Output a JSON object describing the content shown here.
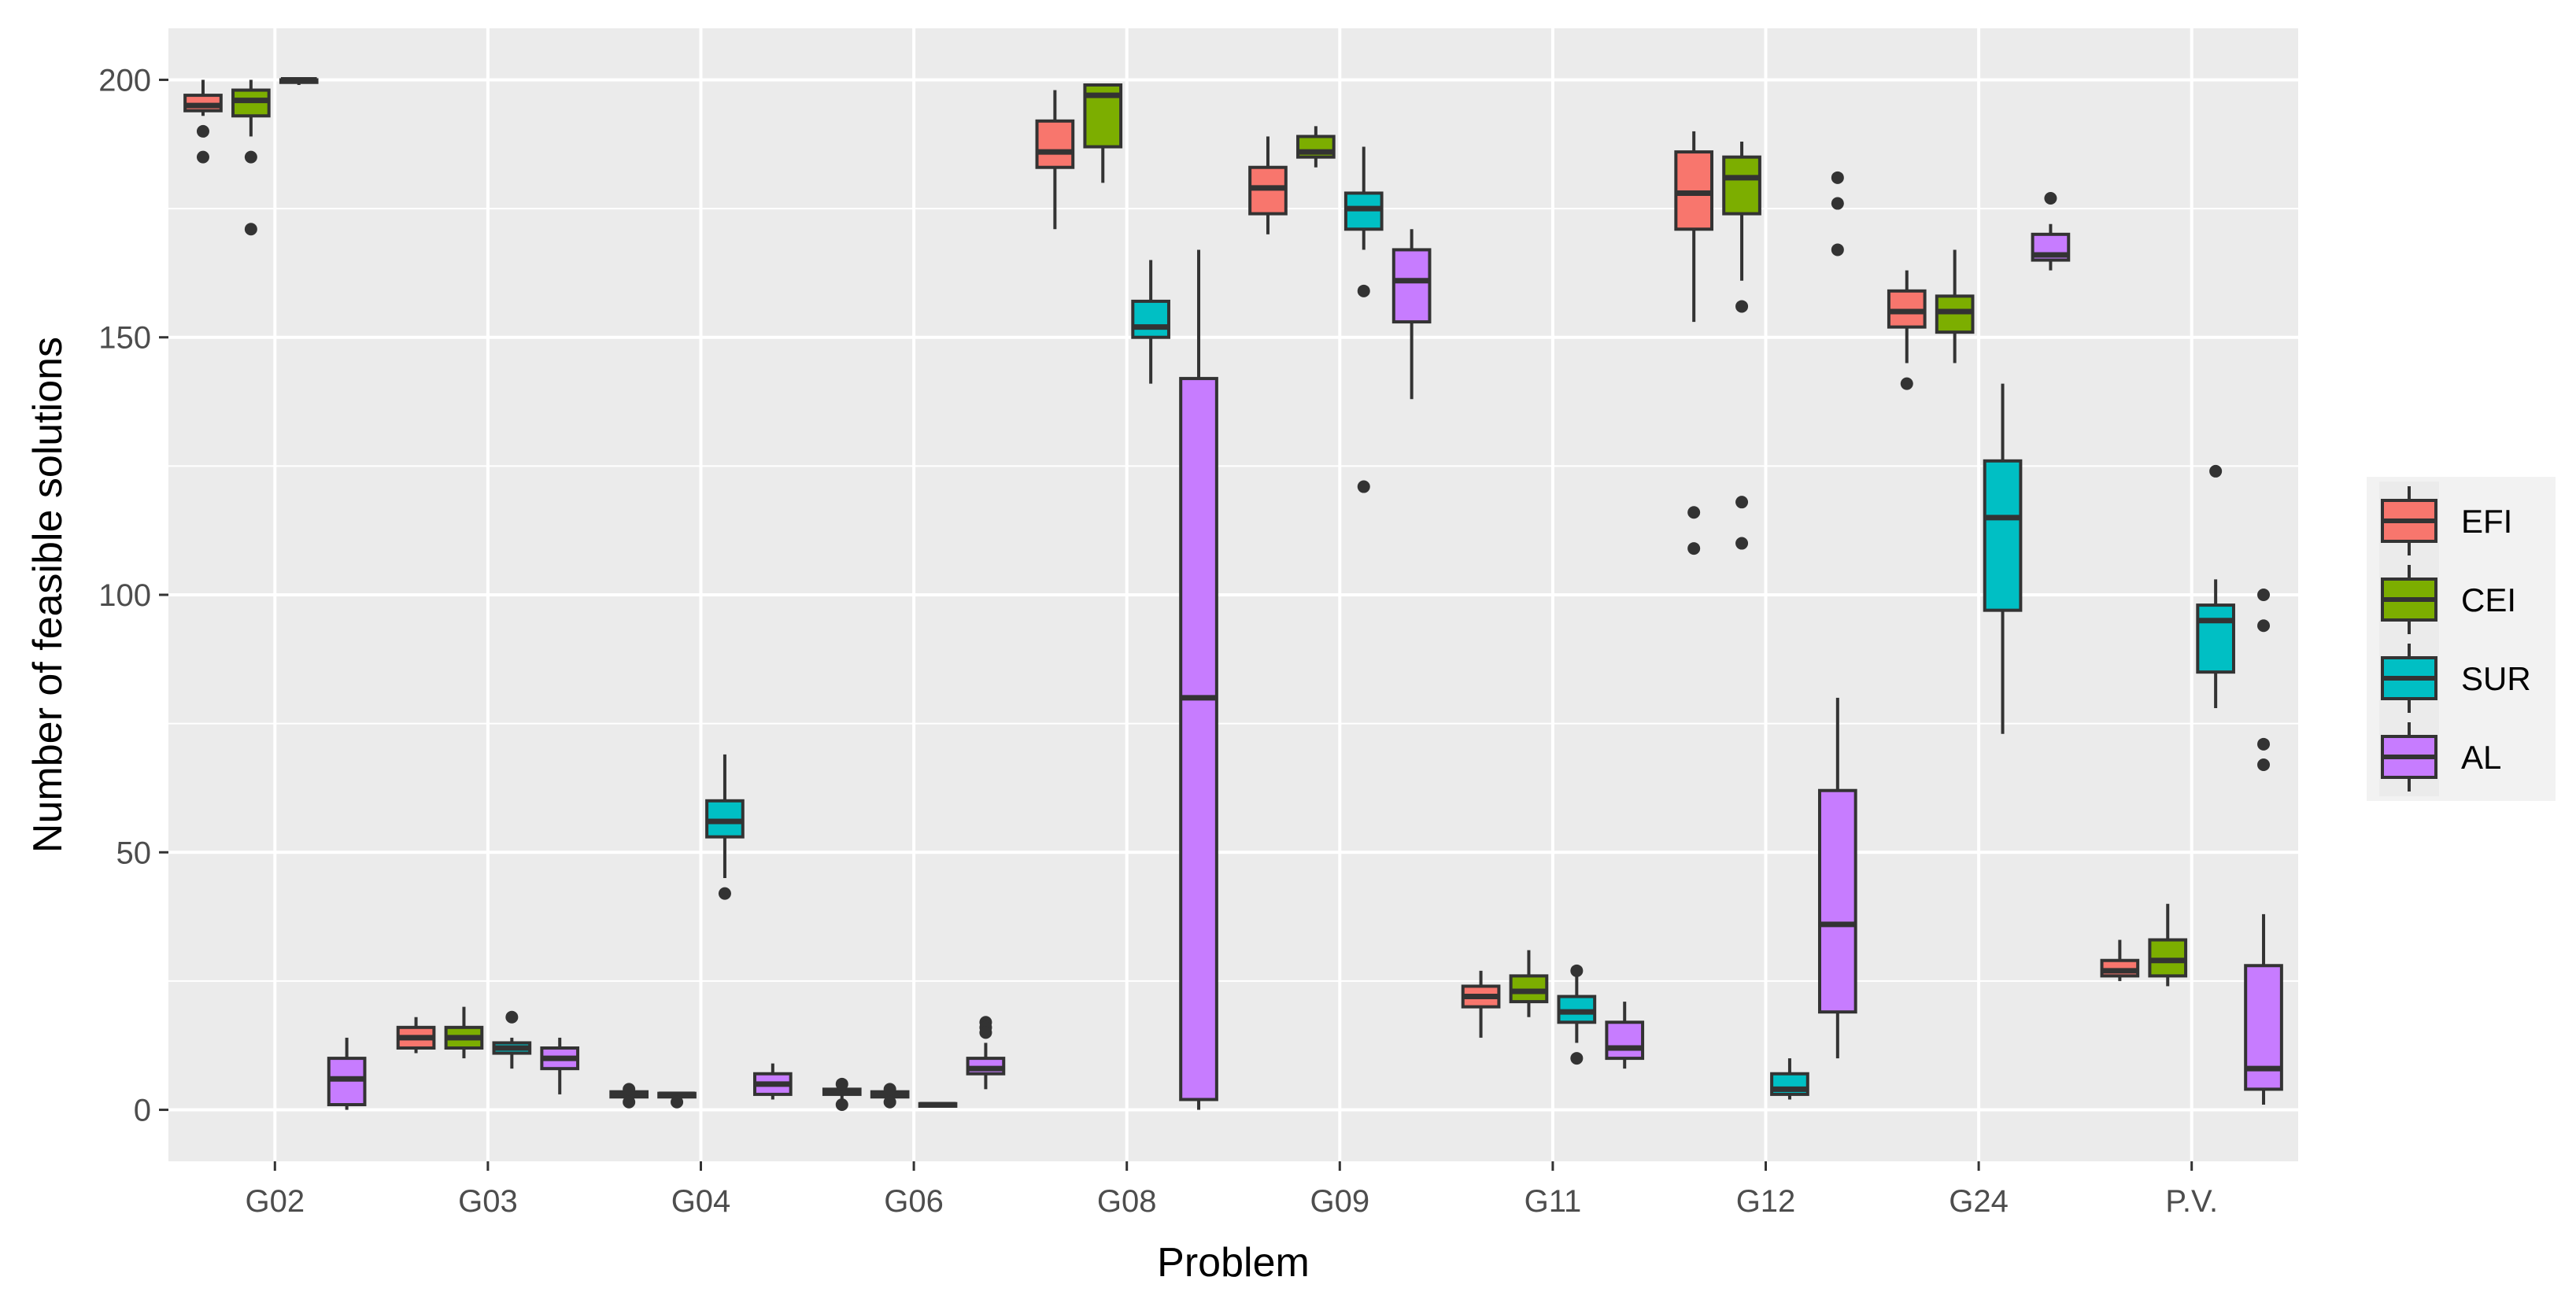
{
  "chart_data": {
    "type": "boxplot",
    "xlabel": "Problem",
    "ylabel": "Number of feasible solutions",
    "ylim": [
      -10,
      210
    ],
    "yticks": [
      0,
      50,
      100,
      150,
      200
    ],
    "categories": [
      "G02",
      "G03",
      "G04",
      "G06",
      "G08",
      "G09",
      "G11",
      "G12",
      "G24",
      "P.V."
    ],
    "legend": {
      "position": "right",
      "entries": [
        {
          "name": "EFI",
          "color": "#F8766D"
        },
        {
          "name": "CEI",
          "color": "#7CAE00"
        },
        {
          "name": "SUR",
          "color": "#00BFC4"
        },
        {
          "name": "AL",
          "color": "#C77CFF"
        }
      ]
    },
    "series": [
      {
        "name": "EFI",
        "boxes": [
          {
            "category": "G02",
            "low": 193,
            "q1": 194,
            "median": 195,
            "q3": 197,
            "high": 200,
            "outliers": [
              190,
              185
            ]
          },
          {
            "category": "G03",
            "low": 11,
            "q1": 12,
            "median": 14,
            "q3": 16,
            "high": 18,
            "outliers": []
          },
          {
            "category": "G04",
            "low": 2,
            "q1": 2.5,
            "median": 3,
            "q3": 3.5,
            "high": 4,
            "outliers": [
              1.5,
              4
            ]
          },
          {
            "category": "G06",
            "low": 2,
            "q1": 3,
            "median": 3.5,
            "q3": 4,
            "high": 5,
            "outliers": [
              1,
              5
            ]
          },
          {
            "category": "G08",
            "low": 171,
            "q1": 183,
            "median": 186,
            "q3": 192,
            "high": 198,
            "outliers": []
          },
          {
            "category": "G09",
            "low": 170,
            "q1": 174,
            "median": 179,
            "q3": 183,
            "high": 189,
            "outliers": []
          },
          {
            "category": "G11",
            "low": 14,
            "q1": 20,
            "median": 22,
            "q3": 24,
            "high": 27,
            "outliers": []
          },
          {
            "category": "G12",
            "low": 153,
            "q1": 171,
            "median": 178,
            "q3": 186,
            "high": 190,
            "outliers": [
              116,
              109
            ]
          },
          {
            "category": "G24",
            "low": 145,
            "q1": 152,
            "median": 155,
            "q3": 159,
            "high": 163,
            "outliers": [
              141
            ]
          },
          {
            "category": "P.V.",
            "low": 25,
            "q1": 26,
            "median": 27,
            "q3": 29,
            "high": 33,
            "outliers": []
          }
        ]
      },
      {
        "name": "CEI",
        "boxes": [
          {
            "category": "G02",
            "low": 189,
            "q1": 193,
            "median": 196,
            "q3": 198,
            "high": 200,
            "outliers": [
              185,
              171
            ]
          },
          {
            "category": "G03",
            "low": 10,
            "q1": 12,
            "median": 14,
            "q3": 16,
            "high": 20,
            "outliers": []
          },
          {
            "category": "G04",
            "low": 2,
            "q1": 2.5,
            "median": 3,
            "q3": 3.2,
            "high": 3.5,
            "outliers": [
              1.5
            ]
          },
          {
            "category": "G06",
            "low": 2,
            "q1": 2.5,
            "median": 3,
            "q3": 3.5,
            "high": 4,
            "outliers": [
              1.5,
              4
            ]
          },
          {
            "category": "G08",
            "low": 180,
            "q1": 187,
            "median": 197,
            "q3": 199,
            "high": 199,
            "outliers": []
          },
          {
            "category": "G09",
            "low": 183,
            "q1": 185,
            "median": 186,
            "q3": 189,
            "high": 191,
            "outliers": []
          },
          {
            "category": "G11",
            "low": 18,
            "q1": 21,
            "median": 23,
            "q3": 26,
            "high": 31,
            "outliers": []
          },
          {
            "category": "G12",
            "low": 161,
            "q1": 174,
            "median": 181,
            "q3": 185,
            "high": 188,
            "outliers": [
              156,
              118,
              110
            ]
          },
          {
            "category": "G24",
            "low": 145,
            "q1": 151,
            "median": 155,
            "q3": 158,
            "high": 167,
            "outliers": []
          },
          {
            "category": "P.V.",
            "low": 24,
            "q1": 26,
            "median": 29,
            "q3": 33,
            "high": 40,
            "outliers": []
          }
        ]
      },
      {
        "name": "SUR",
        "boxes": [
          {
            "category": "G02",
            "low": 199,
            "q1": 199.5,
            "median": 200,
            "q3": 200,
            "high": 200,
            "outliers": []
          },
          {
            "category": "G03",
            "low": 8,
            "q1": 11,
            "median": 12,
            "q3": 13,
            "high": 14,
            "outliers": [
              18
            ]
          },
          {
            "category": "G04",
            "low": 45,
            "q1": 53,
            "median": 56,
            "q3": 60,
            "high": 69,
            "outliers": [
              42
            ]
          },
          {
            "category": "G06",
            "low": 0.5,
            "q1": 0.7,
            "median": 1,
            "q3": 1.2,
            "high": 1.5,
            "outliers": []
          },
          {
            "category": "G08",
            "low": 141,
            "q1": 150,
            "median": 152,
            "q3": 157,
            "high": 165,
            "outliers": []
          },
          {
            "category": "G09",
            "low": 167,
            "q1": 171,
            "median": 175,
            "q3": 178,
            "high": 187,
            "outliers": [
              159,
              121
            ]
          },
          {
            "category": "G11",
            "low": 13,
            "q1": 17,
            "median": 19,
            "q3": 22,
            "high": 27,
            "outliers": [
              27,
              10
            ]
          },
          {
            "category": "G12",
            "low": 2,
            "q1": 3,
            "median": 4,
            "q3": 7,
            "high": 10,
            "outliers": []
          },
          {
            "category": "G24",
            "low": 73,
            "q1": 97,
            "median": 115,
            "q3": 126,
            "high": 141,
            "outliers": []
          },
          {
            "category": "P.V.",
            "low": 78,
            "q1": 85,
            "median": 95,
            "q3": 98,
            "high": 103,
            "outliers": [
              124
            ]
          }
        ]
      },
      {
        "name": "AL",
        "boxes": [
          {
            "category": "G02",
            "low": 0,
            "q1": 1,
            "median": 6,
            "q3": 10,
            "high": 14,
            "outliers": []
          },
          {
            "category": "G03",
            "low": 3,
            "q1": 8,
            "median": 10,
            "q3": 12,
            "high": 14,
            "outliers": []
          },
          {
            "category": "G04",
            "low": 2,
            "q1": 3,
            "median": 5,
            "q3": 7,
            "high": 9,
            "outliers": []
          },
          {
            "category": "G06",
            "low": 4,
            "q1": 7,
            "median": 8,
            "q3": 10,
            "high": 13,
            "outliers": [
              17,
              16,
              15
            ]
          },
          {
            "category": "G08",
            "low": 0,
            "q1": 2,
            "median": 80,
            "q3": 142,
            "high": 167,
            "outliers": []
          },
          {
            "category": "G09",
            "low": 138,
            "q1": 153,
            "median": 161,
            "q3": 167,
            "high": 171,
            "outliers": []
          },
          {
            "category": "G11",
            "low": 8,
            "q1": 10,
            "median": 12,
            "q3": 17,
            "high": 21,
            "outliers": []
          },
          {
            "category": "G12",
            "low": 10,
            "q1": 19,
            "median": 36,
            "q3": 62,
            "high": 80,
            "outliers": [
              181,
              176,
              167
            ]
          },
          {
            "category": "G24",
            "low": 163,
            "q1": 165,
            "median": 166,
            "q3": 170,
            "high": 172,
            "outliers": [
              177
            ]
          },
          {
            "category": "P.V.",
            "low": 1,
            "q1": 4,
            "median": 8,
            "q3": 28,
            "high": 38,
            "outliers": [
              100,
              94,
              71,
              67
            ]
          }
        ]
      }
    ]
  }
}
